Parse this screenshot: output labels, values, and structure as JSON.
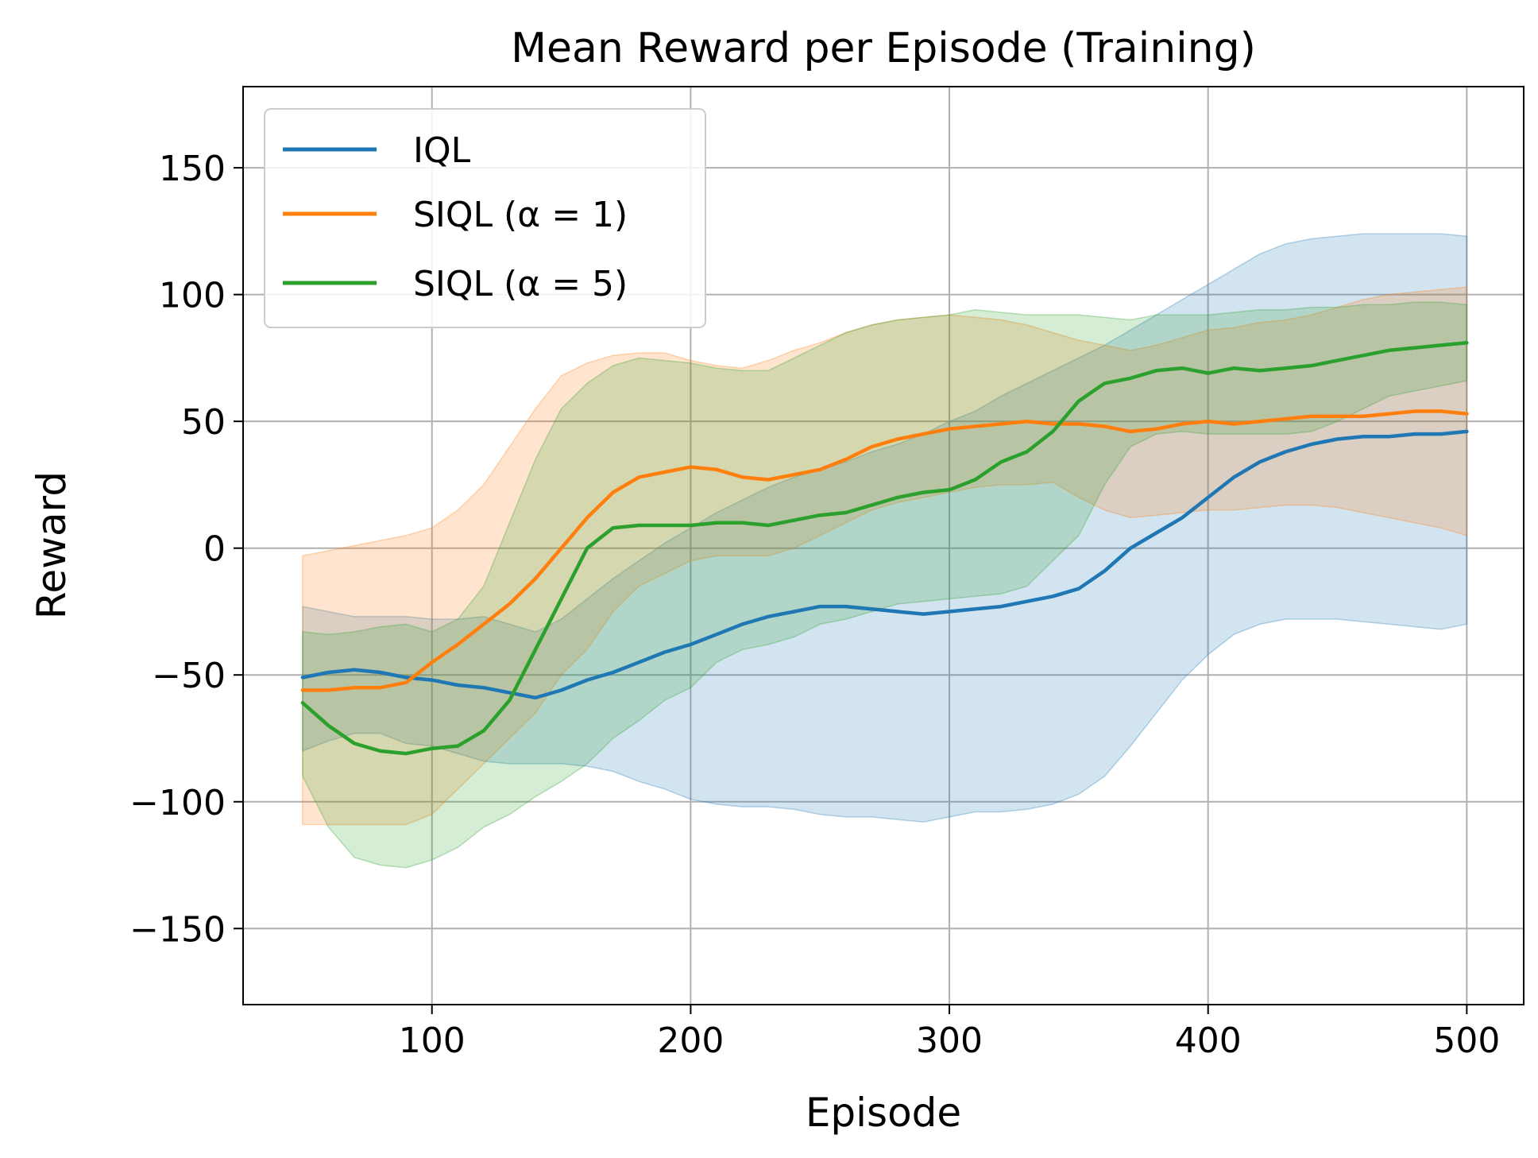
{
  "chart_data": {
    "type": "line",
    "title": "Mean Reward per Episode (Training)",
    "xlabel": "Episode",
    "ylabel": "Reward",
    "xlim": [
      27,
      522
    ],
    "ylim": [
      -180,
      182
    ],
    "xticks": [
      100,
      200,
      300,
      400,
      500
    ],
    "xtick_labels": [
      "100",
      "200",
      "300",
      "400",
      "500"
    ],
    "yticks": [
      150,
      100,
      50,
      0,
      -50,
      -100,
      -150
    ],
    "ytick_labels": [
      "150",
      "100",
      "50",
      "0",
      "−50",
      "−100",
      "−150"
    ],
    "grid": true,
    "legend_position": "top-left",
    "x": [
      50,
      60,
      70,
      80,
      90,
      100,
      110,
      120,
      130,
      140,
      150,
      160,
      170,
      180,
      190,
      200,
      210,
      220,
      230,
      240,
      250,
      260,
      270,
      280,
      290,
      300,
      310,
      320,
      330,
      340,
      350,
      360,
      370,
      380,
      390,
      400,
      410,
      420,
      430,
      440,
      450,
      460,
      470,
      480,
      490,
      500
    ],
    "series": [
      {
        "name": "IQL",
        "legend_text": "IQL",
        "color": "#1f77b4",
        "values": [
          -51,
          -49,
          -48,
          -49,
          -51,
          -52,
          -54,
          -55,
          -57,
          -59,
          -56,
          -52,
          -49,
          -45,
          -41,
          -38,
          -34,
          -30,
          -27,
          -25,
          -23,
          -23,
          -24,
          -25,
          -26,
          -25,
          -24,
          -23,
          -21,
          -19,
          -16,
          -9,
          0,
          6,
          12,
          20,
          28,
          34,
          38,
          41,
          43,
          44,
          44,
          45,
          45,
          46
        ],
        "upper": [
          -23,
          -25,
          -27,
          -27,
          -27,
          -28,
          -28,
          -27,
          -30,
          -33,
          -28,
          -20,
          -12,
          -5,
          2,
          8,
          14,
          19,
          24,
          28,
          31,
          34,
          38,
          41,
          45,
          50,
          54,
          60,
          65,
          70,
          75,
          80,
          86,
          92,
          98,
          104,
          110,
          116,
          120,
          122,
          123,
          124,
          124,
          124,
          124,
          123
        ],
        "lower": [
          -80,
          -76,
          -73,
          -73,
          -77,
          -78,
          -81,
          -84,
          -85,
          -85,
          -85,
          -86,
          -88,
          -92,
          -95,
          -99,
          -101,
          -102,
          -102,
          -103,
          -105,
          -106,
          -106,
          -107,
          -108,
          -106,
          -104,
          -104,
          -103,
          -101,
          -97,
          -90,
          -78,
          -65,
          -52,
          -42,
          -34,
          -30,
          -28,
          -28,
          -28,
          -29,
          -30,
          -31,
          -32,
          -30
        ]
      },
      {
        "name": "SIQL (α=1)",
        "legend_text": "SIQL (α = 1)",
        "color": "#ff7f0e",
        "values": [
          -56,
          -56,
          -55,
          -55,
          -53,
          -45,
          -38,
          -30,
          -22,
          -12,
          0,
          12,
          22,
          28,
          30,
          32,
          31,
          28,
          27,
          29,
          31,
          35,
          40,
          43,
          45,
          47,
          48,
          49,
          50,
          49,
          49,
          48,
          46,
          47,
          49,
          50,
          49,
          50,
          51,
          52,
          52,
          52,
          53,
          54,
          54,
          53
        ],
        "upper": [
          -3,
          -1,
          1,
          3,
          5,
          8,
          15,
          25,
          40,
          55,
          68,
          73,
          76,
          77,
          77,
          74,
          72,
          71,
          74,
          78,
          81,
          85,
          88,
          90,
          91,
          92,
          91,
          90,
          88,
          85,
          82,
          80,
          78,
          80,
          83,
          86,
          87,
          89,
          90,
          92,
          95,
          98,
          100,
          101,
          102,
          103
        ],
        "lower": [
          -109,
          -109,
          -109,
          -109,
          -109,
          -105,
          -95,
          -85,
          -75,
          -65,
          -50,
          -40,
          -25,
          -15,
          -10,
          -5,
          -3,
          -3,
          -3,
          0,
          5,
          10,
          15,
          18,
          20,
          22,
          24,
          25,
          25,
          26,
          20,
          15,
          12,
          13,
          14,
          15,
          15,
          16,
          17,
          17,
          16,
          14,
          12,
          10,
          8,
          5
        ]
      },
      {
        "name": "SIQL (α=5)",
        "legend_text": "SIQL (α = 5)",
        "color": "#2ca02c",
        "values": [
          -61,
          -70,
          -77,
          -80,
          -81,
          -79,
          -78,
          -72,
          -60,
          -40,
          -20,
          0,
          8,
          9,
          9,
          9,
          10,
          10,
          9,
          11,
          13,
          14,
          17,
          20,
          22,
          23,
          27,
          34,
          38,
          46,
          58,
          65,
          67,
          70,
          71,
          69,
          71,
          70,
          71,
          72,
          74,
          76,
          78,
          79,
          80,
          81
        ],
        "upper": [
          -33,
          -34,
          -33,
          -31,
          -30,
          -33,
          -28,
          -15,
          10,
          35,
          55,
          65,
          72,
          75,
          74,
          73,
          71,
          70,
          70,
          75,
          80,
          85,
          88,
          90,
          91,
          92,
          94,
          93,
          92,
          92,
          92,
          91,
          90,
          92,
          92,
          92,
          93,
          94,
          94,
          95,
          95,
          96,
          96,
          97,
          97,
          96
        ],
        "lower": [
          -90,
          -110,
          -122,
          -125,
          -126,
          -123,
          -118,
          -110,
          -105,
          -98,
          -92,
          -85,
          -75,
          -68,
          -60,
          -55,
          -45,
          -40,
          -38,
          -35,
          -30,
          -28,
          -25,
          -22,
          -21,
          -20,
          -19,
          -18,
          -15,
          -5,
          5,
          25,
          40,
          45,
          46,
          45,
          45,
          45,
          45,
          46,
          50,
          55,
          60,
          62,
          64,
          66
        ]
      }
    ]
  }
}
